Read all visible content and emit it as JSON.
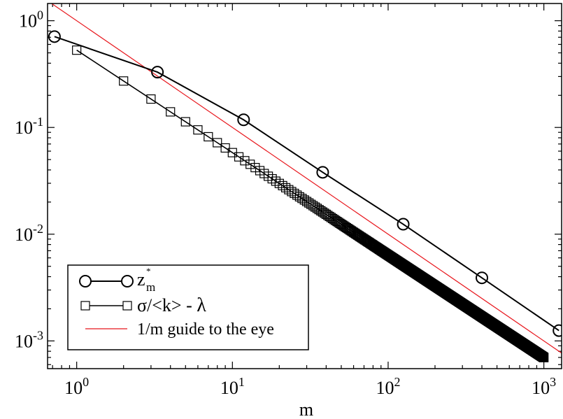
{
  "chart_data": {
    "type": "line",
    "xlabel": "m",
    "ylabel": "",
    "xscale": "log",
    "yscale": "log",
    "xlim": [
      0.65,
      1300
    ],
    "ylim": [
      0.00055,
      1.45
    ],
    "grid": false,
    "legend_position": "bottom-left",
    "x_ticks": [
      {
        "value": 1,
        "base": "10",
        "exp": "0"
      },
      {
        "value": 10,
        "base": "10",
        "exp": "1"
      },
      {
        "value": 100,
        "base": "10",
        "exp": "2"
      },
      {
        "value": 1000,
        "base": "10",
        "exp": "3"
      }
    ],
    "y_ticks": [
      {
        "value": 0.001,
        "base": "10",
        "exp": "-3"
      },
      {
        "value": 0.01,
        "base": "10",
        "exp": "-2"
      },
      {
        "value": 0.1,
        "base": "10",
        "exp": "-1"
      },
      {
        "value": 1,
        "base": "10",
        "exp": "0"
      }
    ],
    "series": [
      {
        "name": "z*m",
        "legend_main": "z",
        "legend_sup": "*",
        "legend_sub": "m",
        "marker": "circle",
        "color": "#000000",
        "x": [
          0.72,
          3.3,
          11.8,
          38,
          125,
          400,
          1250
        ],
        "y": [
          0.71,
          0.33,
          0.118,
          0.038,
          0.0124,
          0.0039,
          0.00125
        ]
      },
      {
        "name": "σ/<k> - λ",
        "legend_main": "σ/<k> - ",
        "legend_symbol": "λ",
        "marker": "square",
        "color": "#000000",
        "generator": {
          "c": 0.53,
          "exponent": 0.96,
          "x_start": 1,
          "x_end": 1000
        }
      },
      {
        "name": "1/m guide to the eye",
        "legend_main": "1/m guide to the eye",
        "marker": "none",
        "color": "#e8161c",
        "function": "1/m"
      }
    ]
  }
}
